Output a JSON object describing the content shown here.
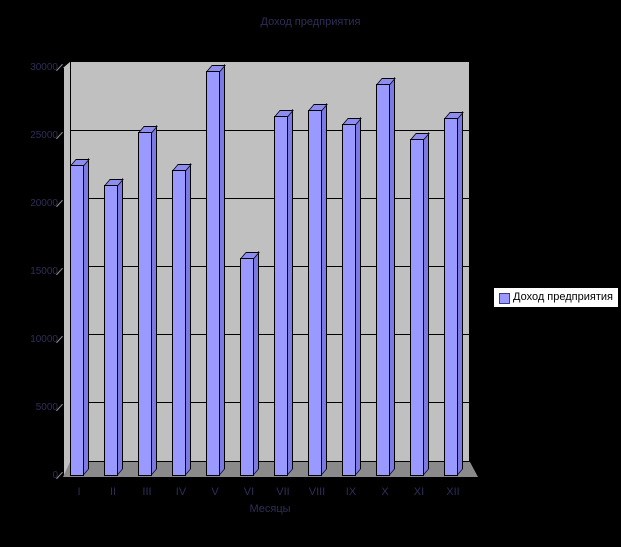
{
  "chart_data": {
    "type": "bar",
    "style": "3d-column",
    "title": "Доход предприятия",
    "xlabel": "Месяцы",
    "ylabel": "",
    "categories": [
      "I",
      "II",
      "III",
      "IV",
      "V",
      "VI",
      "VII",
      "VIII",
      "IX",
      "X",
      "XI",
      "XII"
    ],
    "series": [
      {
        "name": "Доход предприятия",
        "values": [
          22900,
          21400,
          25300,
          22500,
          29800,
          16000,
          26500,
          26900,
          25900,
          28800,
          24800,
          26300
        ]
      }
    ],
    "ylim": [
      0,
      30000
    ],
    "ytick_step": 5000,
    "yticks": [
      "0",
      "5000",
      "10000",
      "15000",
      "20000",
      "25000",
      "30000"
    ],
    "grid": true,
    "legend_position": "right",
    "plot_background": "gray-wall-3d",
    "chart_background": "black"
  },
  "colors": {
    "background": "#000000",
    "wall": "#c0c0c0",
    "floor": "#8a8a8a",
    "grid": "#000000",
    "bar_front": "#9999ff",
    "bar_side": "#7a7ae2",
    "bar_top": "#8d8df0",
    "dim_text": "#2e2e56",
    "legend_bg": "#ffffff",
    "legend_text": "#000000"
  }
}
